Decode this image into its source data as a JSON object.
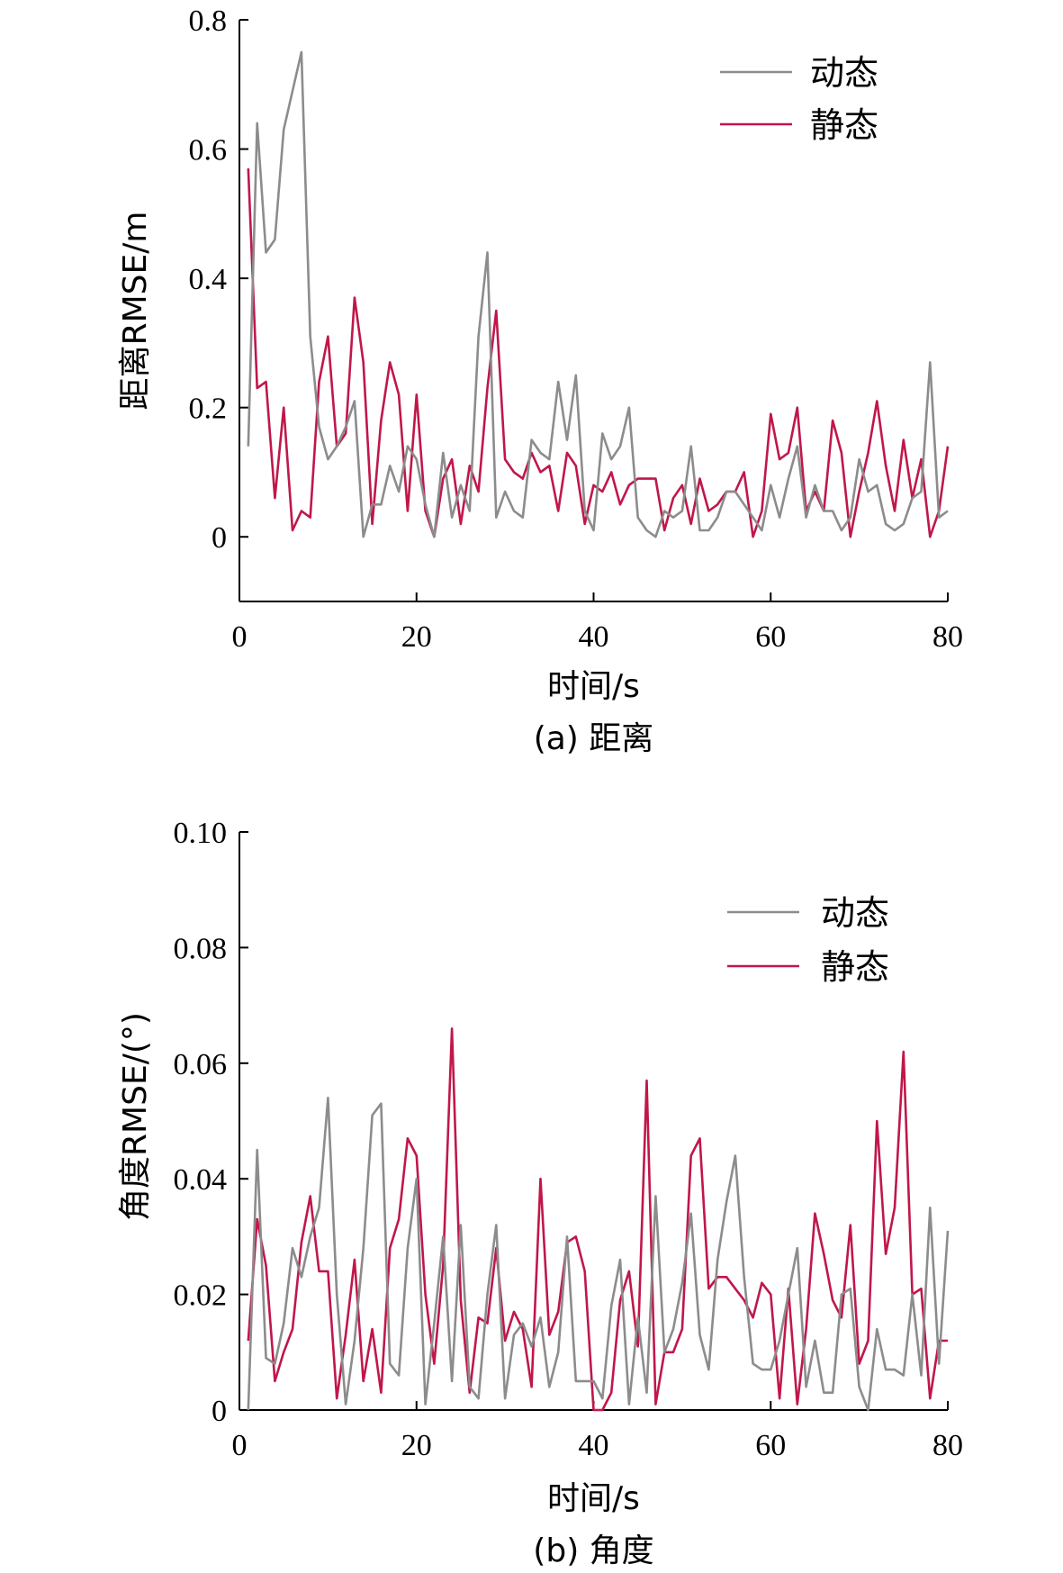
{
  "chart_data": [
    {
      "type": "line",
      "caption": "(a) 距离",
      "xlabel": "时间/s",
      "ylabel": "距离RMSE/m",
      "xlim": [
        0,
        80
      ],
      "ylim": [
        -0.1,
        0.8
      ],
      "xticks": [
        0,
        20,
        40,
        60,
        80
      ],
      "yticks": [
        0,
        0.2,
        0.4,
        0.6,
        0.8
      ],
      "ytick_labels": [
        "0",
        "0.2",
        "0.4",
        "0.6",
        "0.8"
      ],
      "xtick_labels": [
        "0",
        "20",
        "40",
        "60",
        "80"
      ],
      "legend_placement": "top-right",
      "x": [
        1,
        2,
        3,
        4,
        5,
        6,
        7,
        8,
        9,
        10,
        11,
        12,
        13,
        14,
        15,
        16,
        17,
        18,
        19,
        20,
        21,
        22,
        23,
        24,
        25,
        26,
        27,
        28,
        29,
        30,
        31,
        32,
        33,
        34,
        35,
        36,
        37,
        38,
        39,
        40,
        41,
        42,
        43,
        44,
        45,
        46,
        47,
        48,
        49,
        50,
        51,
        52,
        53,
        54,
        55,
        56,
        57,
        58,
        59,
        60,
        61,
        62,
        63,
        64,
        65,
        66,
        67,
        68,
        69,
        70,
        71,
        72,
        73,
        74,
        75,
        76,
        77,
        78,
        79,
        80
      ],
      "series": [
        {
          "name": "动态",
          "color": "#8c8c8c",
          "values": [
            0.14,
            0.64,
            0.44,
            0.46,
            0.63,
            0.69,
            0.75,
            0.31,
            0.17,
            0.12,
            0.14,
            0.17,
            0.21,
            0.0,
            0.05,
            0.05,
            0.11,
            0.07,
            0.14,
            0.12,
            0.05,
            0.0,
            0.13,
            0.03,
            0.08,
            0.04,
            0.31,
            0.44,
            0.03,
            0.07,
            0.04,
            0.03,
            0.15,
            0.13,
            0.12,
            0.24,
            0.15,
            0.25,
            0.04,
            0.01,
            0.16,
            0.12,
            0.14,
            0.2,
            0.03,
            0.01,
            0.0,
            0.04,
            0.03,
            0.04,
            0.14,
            0.01,
            0.01,
            0.03,
            0.07,
            0.07,
            0.05,
            0.03,
            0.01,
            0.08,
            0.03,
            0.09,
            0.14,
            0.03,
            0.08,
            0.04,
            0.04,
            0.01,
            0.03,
            0.12,
            0.07,
            0.08,
            0.02,
            0.01,
            0.02,
            0.06,
            0.07,
            0.27,
            0.03,
            0.04
          ]
        },
        {
          "name": "静态",
          "color": "#c0174a",
          "values": [
            0.57,
            0.23,
            0.24,
            0.06,
            0.2,
            0.01,
            0.04,
            0.03,
            0.24,
            0.31,
            0.14,
            0.16,
            0.37,
            0.27,
            0.02,
            0.18,
            0.27,
            0.22,
            0.04,
            0.22,
            0.04,
            0.0,
            0.09,
            0.12,
            0.02,
            0.11,
            0.07,
            0.23,
            0.35,
            0.12,
            0.1,
            0.09,
            0.13,
            0.1,
            0.11,
            0.04,
            0.13,
            0.11,
            0.02,
            0.08,
            0.07,
            0.1,
            0.05,
            0.08,
            0.09,
            0.09,
            0.09,
            0.01,
            0.06,
            0.08,
            0.02,
            0.09,
            0.04,
            0.05,
            0.07,
            0.07,
            0.1,
            0.0,
            0.04,
            0.19,
            0.12,
            0.13,
            0.2,
            0.04,
            0.07,
            0.04,
            0.18,
            0.13,
            0.0,
            0.07,
            0.13,
            0.21,
            0.11,
            0.04,
            0.15,
            0.06,
            0.12,
            0.0,
            0.04,
            0.14
          ]
        }
      ]
    },
    {
      "type": "line",
      "caption": "(b) 角度",
      "xlabel": "时间/s",
      "ylabel": "角度RMSE/(°)",
      "xlim": [
        0,
        80
      ],
      "ylim": [
        0,
        0.1
      ],
      "xticks": [
        0,
        20,
        40,
        60,
        80
      ],
      "yticks": [
        0,
        0.02,
        0.04,
        0.06,
        0.08,
        0.1
      ],
      "ytick_labels": [
        "0",
        "0.02",
        "0.04",
        "0.06",
        "0.08",
        "0.10"
      ],
      "xtick_labels": [
        "0",
        "20",
        "40",
        "60",
        "80"
      ],
      "legend_placement": "top-right",
      "x": [
        1,
        2,
        3,
        4,
        5,
        6,
        7,
        8,
        9,
        10,
        11,
        12,
        13,
        14,
        15,
        16,
        17,
        18,
        19,
        20,
        21,
        22,
        23,
        24,
        25,
        26,
        27,
        28,
        29,
        30,
        31,
        32,
        33,
        34,
        35,
        36,
        37,
        38,
        39,
        40,
        41,
        42,
        43,
        44,
        45,
        46,
        47,
        48,
        49,
        50,
        51,
        52,
        53,
        54,
        55,
        56,
        57,
        58,
        59,
        60,
        61,
        62,
        63,
        64,
        65,
        66,
        67,
        68,
        69,
        70,
        71,
        72,
        73,
        74,
        75,
        76,
        77,
        78,
        79,
        80
      ],
      "series": [
        {
          "name": "动态",
          "color": "#8c8c8c",
          "values": [
            0.0,
            0.045,
            0.009,
            0.008,
            0.015,
            0.028,
            0.023,
            0.03,
            0.035,
            0.054,
            0.02,
            0.001,
            0.012,
            0.028,
            0.051,
            0.053,
            0.008,
            0.006,
            0.028,
            0.04,
            0.001,
            0.015,
            0.03,
            0.005,
            0.032,
            0.004,
            0.002,
            0.02,
            0.032,
            0.002,
            0.013,
            0.015,
            0.011,
            0.016,
            0.004,
            0.01,
            0.03,
            0.005,
            0.005,
            0.005,
            0.002,
            0.018,
            0.026,
            0.001,
            0.016,
            0.003,
            0.037,
            0.01,
            0.014,
            0.022,
            0.034,
            0.013,
            0.007,
            0.026,
            0.036,
            0.044,
            0.023,
            0.008,
            0.007,
            0.007,
            0.012,
            0.02,
            0.028,
            0.004,
            0.012,
            0.003,
            0.003,
            0.02,
            0.021,
            0.004,
            0.0,
            0.014,
            0.007,
            0.007,
            0.006,
            0.02,
            0.006,
            0.035,
            0.008,
            0.031
          ]
        },
        {
          "name": "静态",
          "color": "#c0174a",
          "values": [
            0.012,
            0.033,
            0.025,
            0.005,
            0.01,
            0.014,
            0.029,
            0.037,
            0.024,
            0.024,
            0.002,
            0.013,
            0.026,
            0.005,
            0.014,
            0.003,
            0.028,
            0.033,
            0.047,
            0.044,
            0.02,
            0.008,
            0.025,
            0.066,
            0.019,
            0.003,
            0.016,
            0.015,
            0.028,
            0.012,
            0.017,
            0.014,
            0.004,
            0.04,
            0.013,
            0.017,
            0.029,
            0.03,
            0.024,
            0.0,
            0.0,
            0.003,
            0.019,
            0.024,
            0.011,
            0.057,
            0.001,
            0.01,
            0.01,
            0.014,
            0.044,
            0.047,
            0.021,
            0.023,
            0.023,
            0.021,
            0.019,
            0.016,
            0.022,
            0.02,
            0.002,
            0.021,
            0.001,
            0.014,
            0.034,
            0.027,
            0.019,
            0.016,
            0.032,
            0.008,
            0.012,
            0.05,
            0.027,
            0.035,
            0.062,
            0.02,
            0.021,
            0.002,
            0.012,
            0.012
          ]
        }
      ]
    }
  ]
}
